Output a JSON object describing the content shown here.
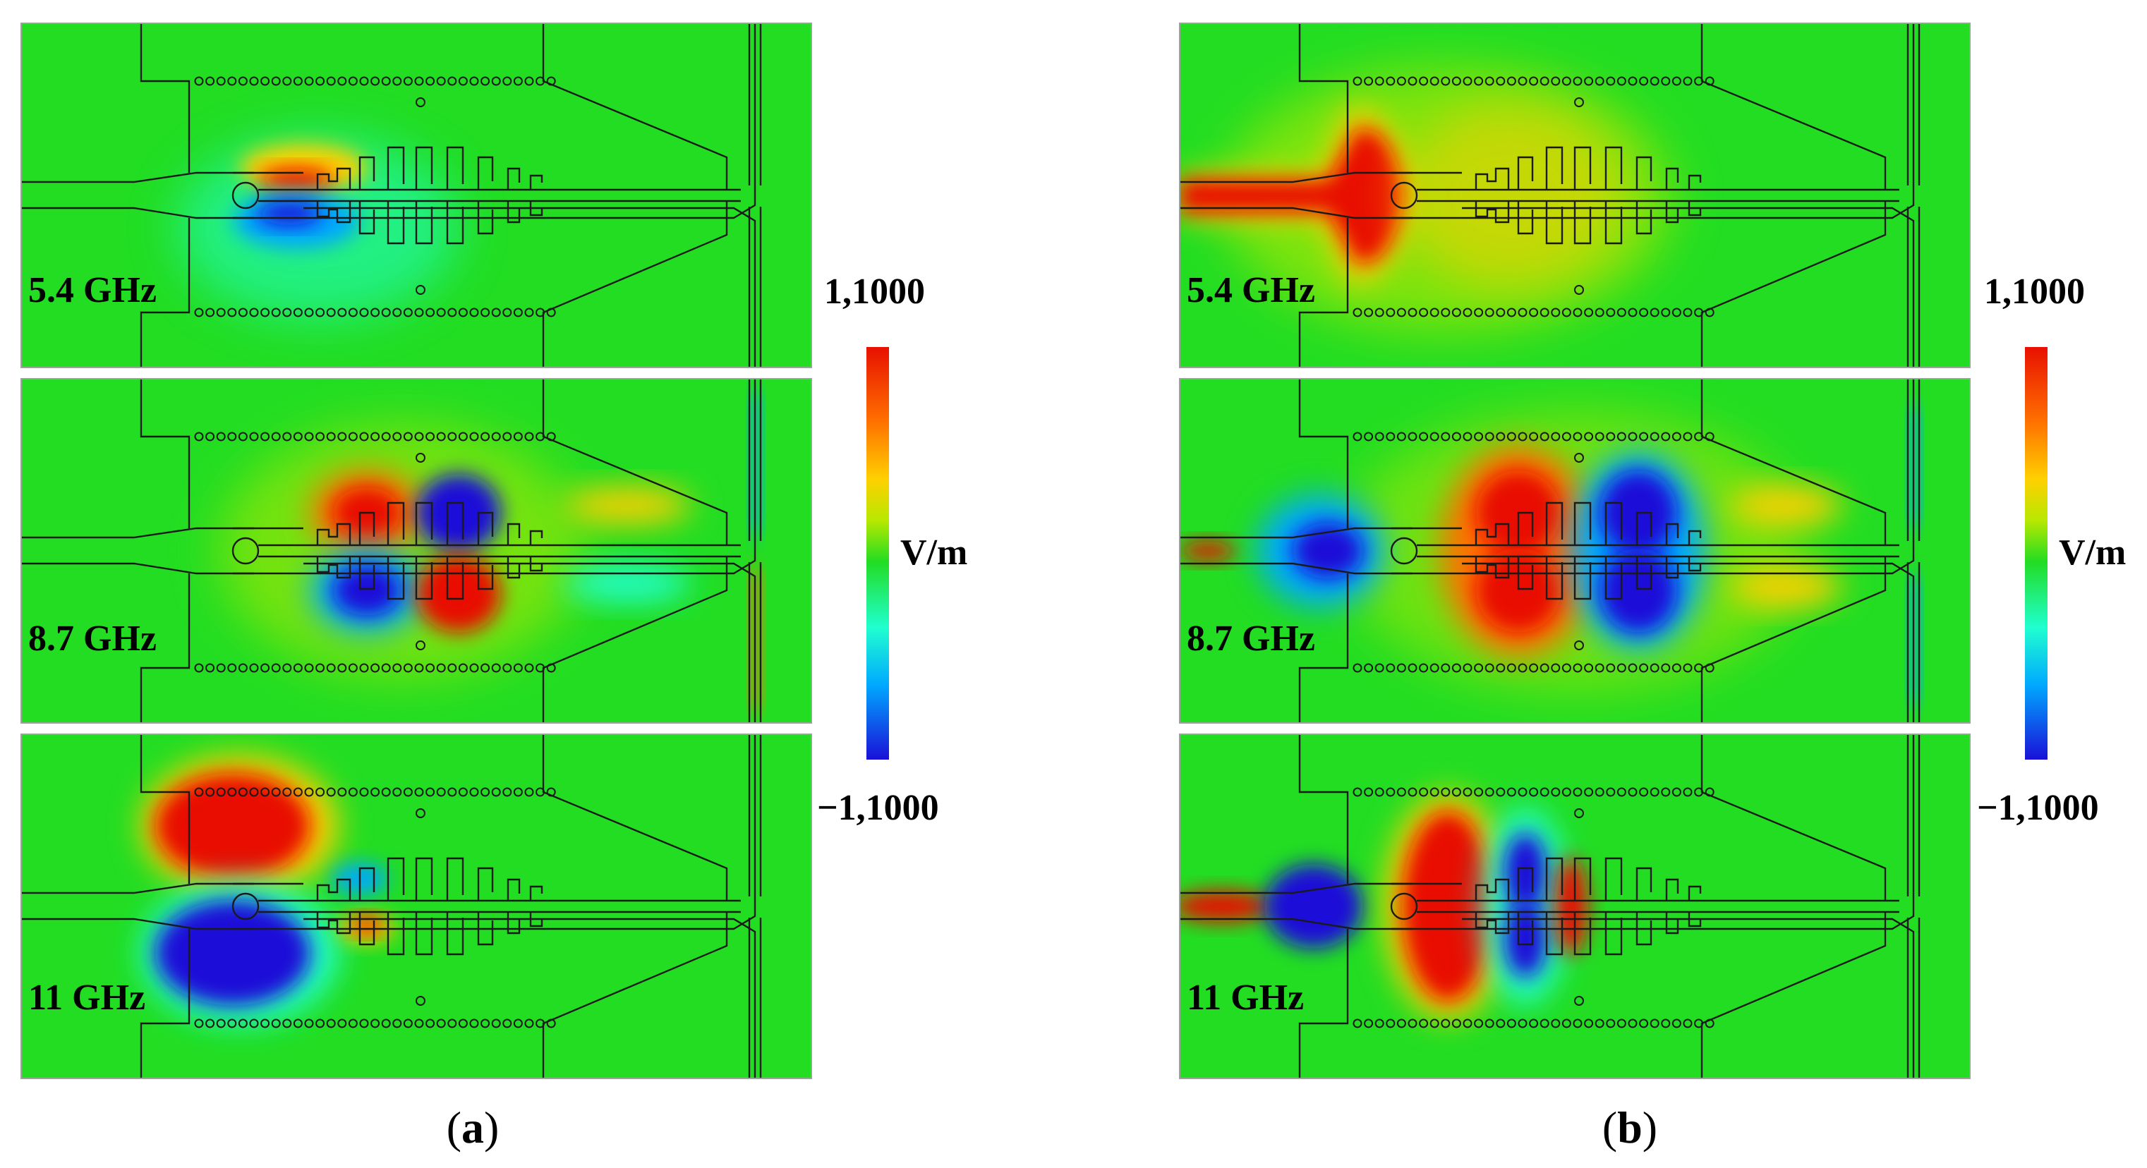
{
  "figure": {
    "panels": [
      {
        "id": "a",
        "caption_letter": "a",
        "rows": [
          {
            "freq_label": "5.4 GHz",
            "mode": "a-5.4"
          },
          {
            "freq_label": "8.7 GHz",
            "mode": "a-8.7"
          },
          {
            "freq_label": "11 GHz",
            "mode": "a-11"
          }
        ],
        "colorbar": {
          "max_label": "1,1000",
          "min_label": "−1,1000",
          "unit_label": "V/m"
        }
      },
      {
        "id": "b",
        "caption_letter": "b",
        "rows": [
          {
            "freq_label": "5.4 GHz",
            "mode": "b-5.4"
          },
          {
            "freq_label": "8.7 GHz",
            "mode": "b-8.7"
          },
          {
            "freq_label": "11 GHz",
            "mode": "b-11"
          }
        ],
        "colorbar": {
          "max_label": "1,1000",
          "min_label": "−1,1000",
          "unit_label": "V/m"
        }
      }
    ],
    "colormap": [
      "#1a10d8",
      "#00a8ff",
      "#20ffd0",
      "#22dd22",
      "#b8e800",
      "#ffd000",
      "#ff7000",
      "#e81000"
    ],
    "background_field_color": "#22dd22"
  }
}
